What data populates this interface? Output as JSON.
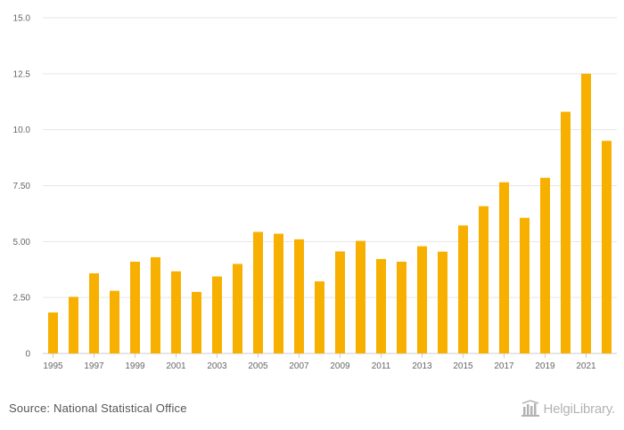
{
  "chart_data": {
    "type": "bar",
    "title": "",
    "xlabel": "",
    "ylabel": "",
    "ylim": [
      0,
      15
    ],
    "yticks": [
      "0",
      "2.50",
      "5.00",
      "7.50",
      "10.0",
      "12.5",
      "15.0"
    ],
    "ytick_values": [
      0,
      2.5,
      5,
      7.5,
      10,
      12.5,
      15
    ],
    "categories": [
      "1995",
      "1996",
      "1997",
      "1998",
      "1999",
      "2000",
      "2001",
      "2002",
      "2003",
      "2004",
      "2005",
      "2006",
      "2007",
      "2008",
      "2009",
      "2010",
      "2011",
      "2012",
      "2013",
      "2014",
      "2015",
      "2016",
      "2017",
      "2018",
      "2019",
      "2020",
      "2021",
      "2022"
    ],
    "xtick_labels": [
      "1995",
      "1997",
      "1999",
      "2001",
      "2003",
      "2005",
      "2007",
      "2009",
      "2011",
      "2013",
      "2015",
      "2017",
      "2019",
      "2021"
    ],
    "values": [
      1.83,
      2.53,
      3.58,
      2.8,
      4.1,
      4.3,
      3.67,
      2.75,
      3.44,
      4.0,
      5.43,
      5.35,
      5.1,
      3.22,
      4.56,
      5.03,
      4.22,
      4.1,
      4.79,
      4.55,
      5.72,
      6.58,
      7.65,
      6.06,
      7.85,
      10.8,
      12.5,
      9.5
    ],
    "grid": true,
    "legend": "none"
  },
  "colors": {
    "bar": "#f8b000",
    "grid": "#e6e6e6",
    "axis_text": "#666666"
  },
  "footer": {
    "source": "Source: National Statistical Office",
    "brand": "HelgiLibrary."
  }
}
